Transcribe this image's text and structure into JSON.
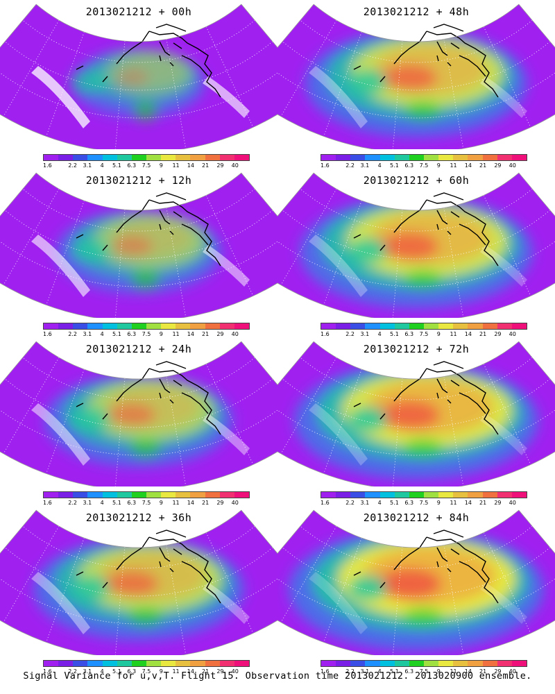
{
  "panels": [
    {
      "title": "2013021212 + 00h",
      "intensity": 0.35
    },
    {
      "title": "2013021212 + 48h",
      "intensity": 0.75
    },
    {
      "title": "2013021212 + 12h",
      "intensity": 0.5
    },
    {
      "title": "2013021212 + 60h",
      "intensity": 0.8
    },
    {
      "title": "2013021212 + 24h",
      "intensity": 0.6
    },
    {
      "title": "2013021212 + 72h",
      "intensity": 0.85
    },
    {
      "title": "2013021212 + 36h",
      "intensity": 0.7
    },
    {
      "title": "2013021212 + 84h",
      "intensity": 0.9
    }
  ],
  "colorbar": {
    "labels": [
      "1.6",
      "2.2",
      "3.1",
      "4",
      "5.1",
      "6.3",
      "7.5",
      "9",
      "11",
      "14",
      "21",
      "29",
      "40"
    ],
    "colors": [
      "#a020f0",
      "#7a1fe6",
      "#3a4ee6",
      "#1e90ff",
      "#00c0e0",
      "#20c8a0",
      "#20d020",
      "#a0e040",
      "#e8e840",
      "#e8c040",
      "#f0a040",
      "#f07040",
      "#f03070",
      "#f0107a"
    ]
  },
  "caption": "Signal Variance for u,v,T. Flight 15. Observation time 2013021212. 2013020900 ensemble."
}
